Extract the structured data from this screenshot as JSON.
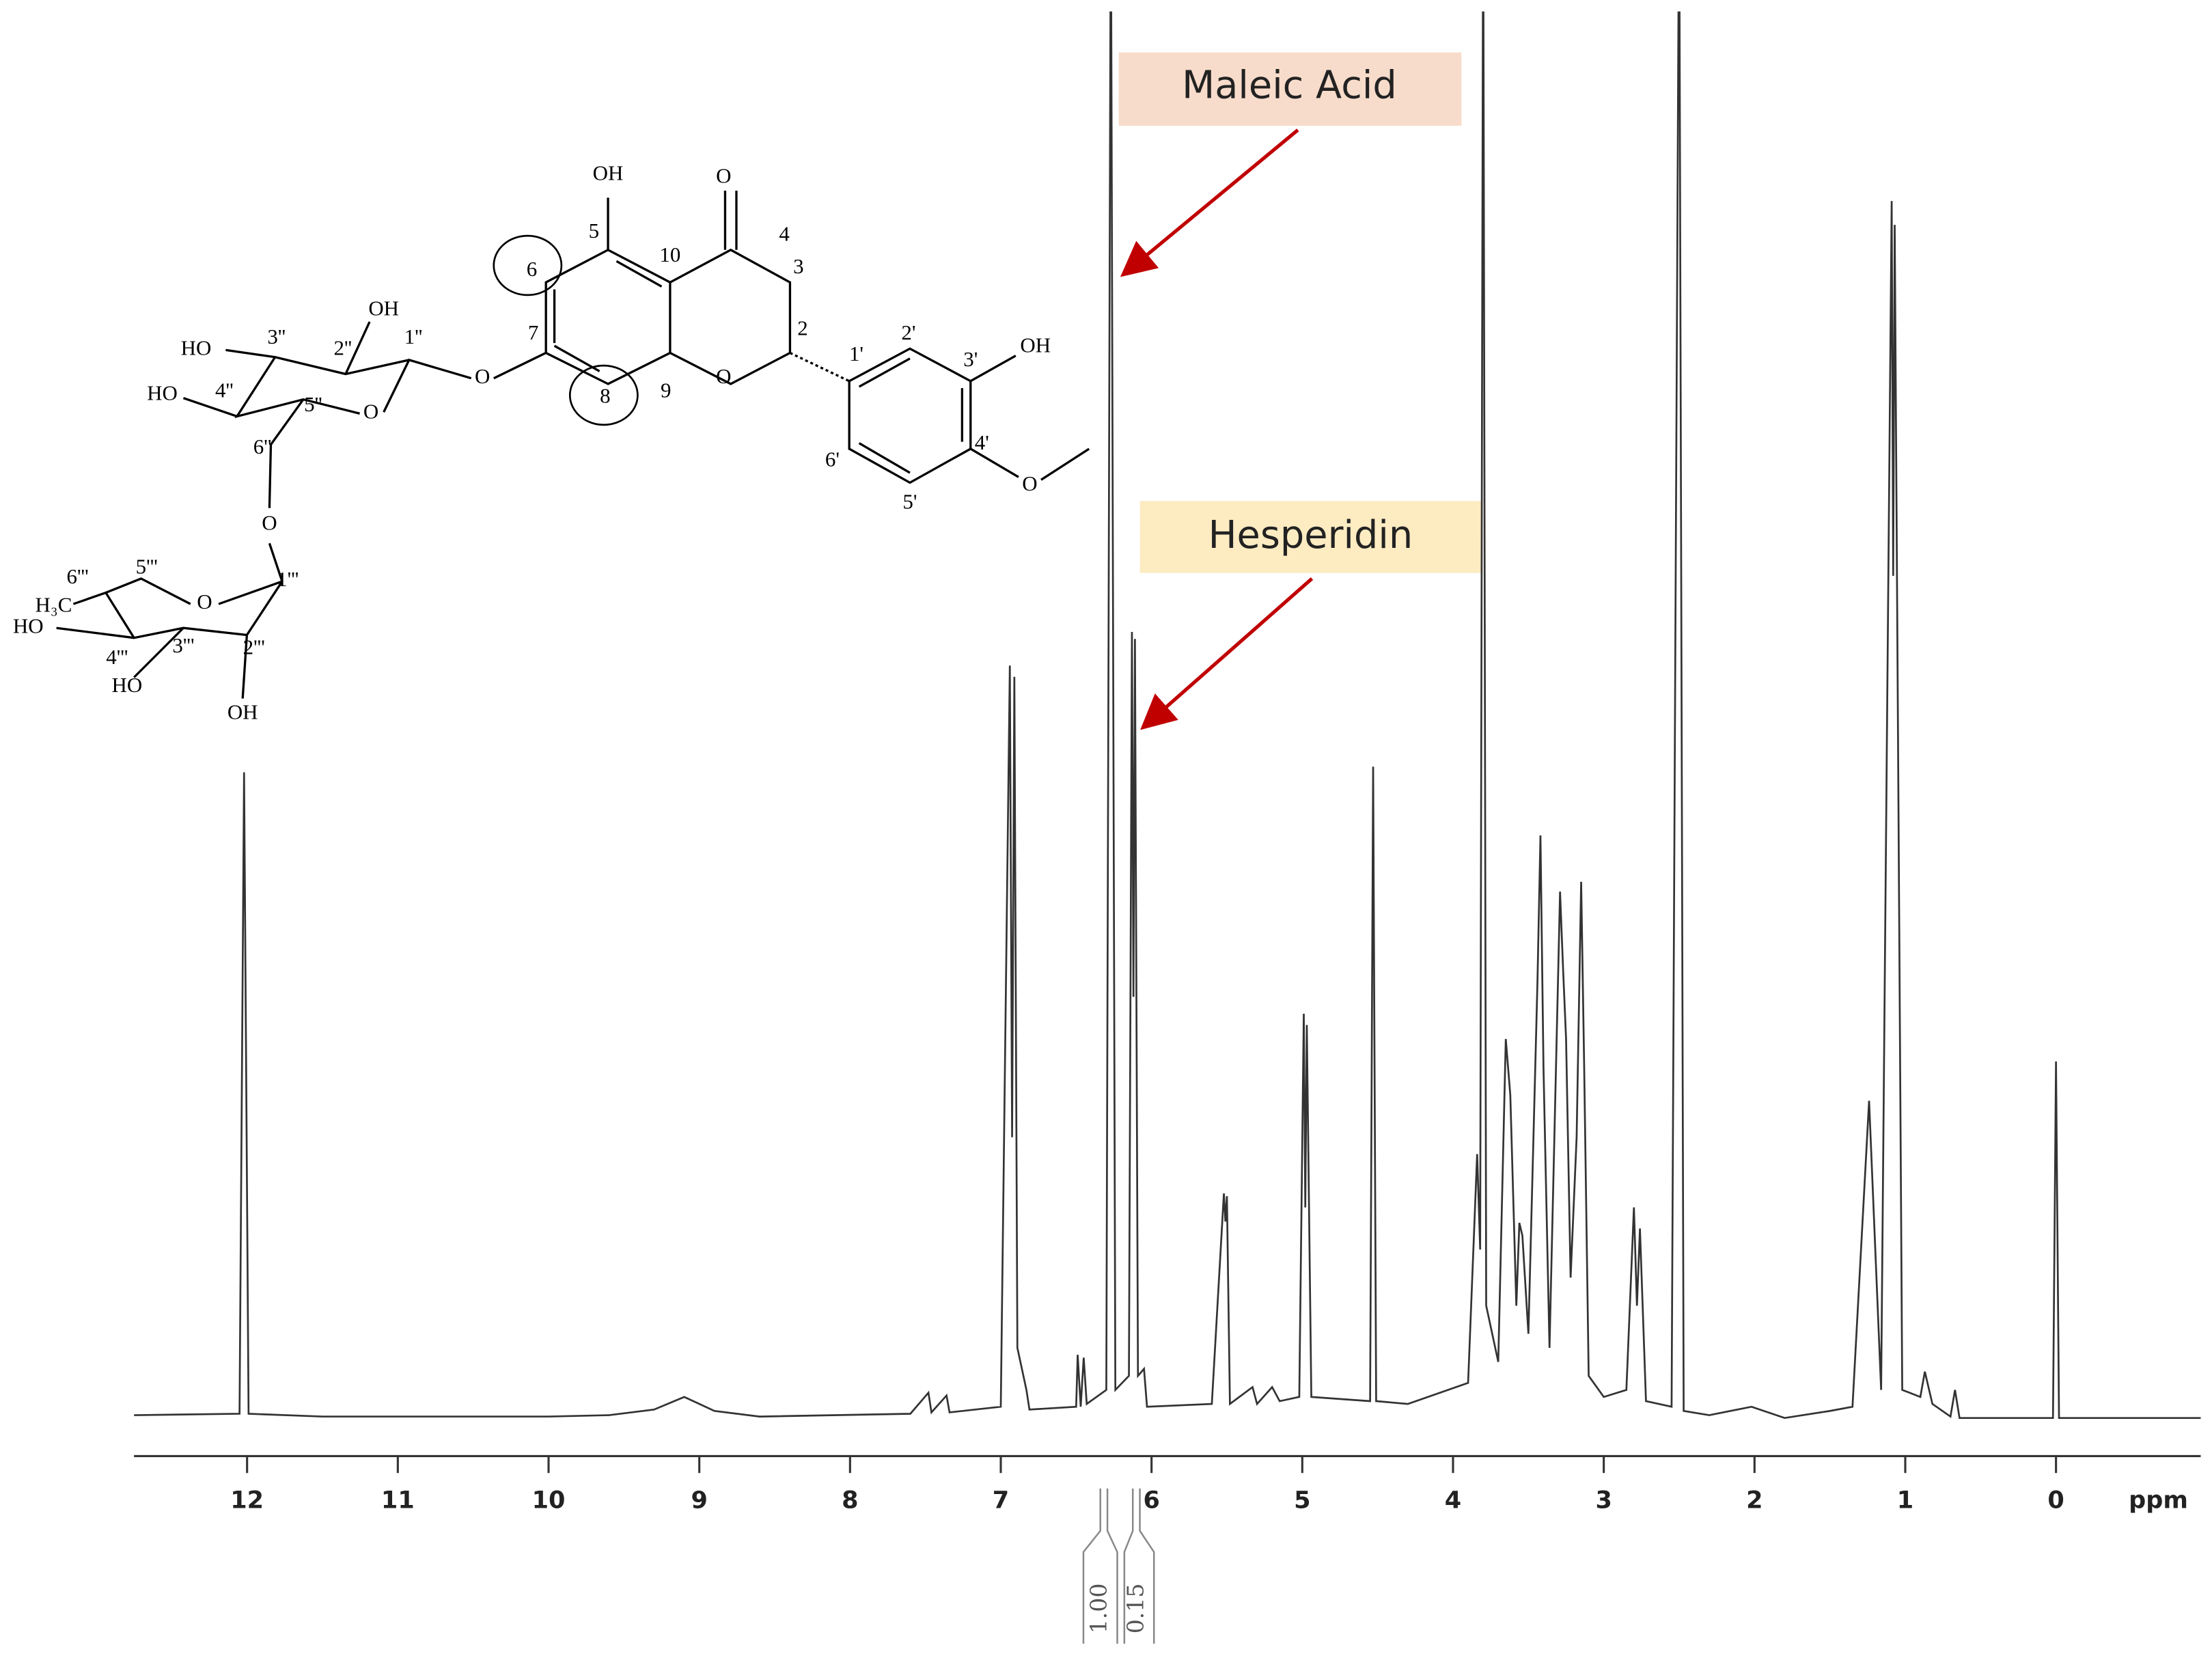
{
  "chart_data": {
    "type": "line",
    "xlabel": "ppm",
    "annotations": [
      "Maleic Acid",
      "Hesperidin",
      "1.00",
      "0.15"
    ],
    "xlim": [
      12.75,
      -0.96
    ],
    "xticks": [
      12,
      11,
      10,
      9,
      8,
      7,
      6,
      5,
      4,
      3,
      2,
      1,
      0
    ],
    "ylim": [
      0,
      100
    ],
    "series": [
      {
        "color": "#333333",
        "x": [
          12.75,
          12.05,
          12.02,
          11.99,
          11.5,
          10,
          9.6,
          9.3,
          9.1,
          8.9,
          8.6,
          7.6,
          7.48,
          7.46,
          7.36,
          7.34,
          7.0,
          6.94,
          6.925,
          6.91,
          6.89,
          6.83,
          6.81,
          6.5,
          6.49,
          6.47,
          6.45,
          6.43,
          6.3,
          6.27,
          6.24,
          6.15,
          6.13,
          6.12,
          6.11,
          6.09,
          6.05,
          6.03,
          5.6,
          5.52,
          5.51,
          5.5,
          5.48,
          5.33,
          5.3,
          5.2,
          5.15,
          5.02,
          4.99,
          4.98,
          4.97,
          4.94,
          4.55,
          4.53,
          4.51,
          4.3,
          3.9,
          3.84,
          3.82,
          3.8,
          3.78,
          3.7,
          3.65,
          3.62,
          3.58,
          3.56,
          3.54,
          3.5,
          3.44,
          3.42,
          3.4,
          3.36,
          3.29,
          3.27,
          3.25,
          3.22,
          3.18,
          3.15,
          3.13,
          3.1,
          3.0,
          2.85,
          2.8,
          2.78,
          2.76,
          2.72,
          2.55,
          2.5,
          2.47,
          2.3,
          2.02,
          1.8,
          1.5,
          1.35,
          1.24,
          1.16,
          1.09,
          1.08,
          1.07,
          1.02,
          0.9,
          0.87,
          0.82,
          0.7,
          0.67,
          0.64,
          0.02,
          0.0,
          -0.02,
          -0.96
        ],
        "values": [
          0.2,
          0.3,
          46,
          0.3,
          0.1,
          0.1,
          0.2,
          0.6,
          1.5,
          0.5,
          0.1,
          0.3,
          1.8,
          0.4,
          1.6,
          0.4,
          0.8,
          53.6,
          20,
          52.8,
          5,
          2,
          0.6,
          0.8,
          4.5,
          0.8,
          4.3,
          1,
          2,
          110,
          2,
          3,
          56,
          30,
          55.5,
          3,
          3.5,
          0.8,
          1,
          16,
          14,
          15.8,
          1,
          2.2,
          1,
          2.2,
          1.2,
          1.5,
          28.8,
          15,
          28,
          1.5,
          1.2,
          46.4,
          1.2,
          1,
          2.5,
          18.8,
          12,
          110,
          8,
          4,
          27,
          23,
          8,
          13.9,
          13,
          6,
          31,
          41.5,
          25,
          5,
          37.5,
          32,
          27,
          10,
          20,
          38.2,
          25,
          3,
          1.5,
          2,
          15,
          8,
          13.5,
          1.2,
          0.8,
          110,
          0.5,
          0.2,
          0.8,
          0,
          0.5,
          0.8,
          22.6,
          2,
          86.7,
          60,
          85,
          2,
          1.5,
          3.3,
          1,
          0.1,
          2,
          0,
          0,
          25.4,
          0,
          0
        ]
      }
    ]
  },
  "structure": {
    "labels": [
      "OH",
      "5",
      "O",
      "4",
      "10",
      "3",
      "6",
      "7",
      "2",
      "9",
      "8",
      "O",
      "1'",
      "2'",
      "3'",
      "OH",
      "4'",
      "6'",
      "5'",
      "O",
      "O",
      "OH",
      "3''",
      "2''",
      "1''",
      "HO",
      "4''",
      "HO",
      "5''",
      "O",
      "6''",
      "O",
      "6'''",
      "5'''",
      "O",
      "1'''",
      "H₃C",
      "HO",
      "4'''",
      "3'''",
      "2'''",
      "HO",
      "OH"
    ]
  }
}
